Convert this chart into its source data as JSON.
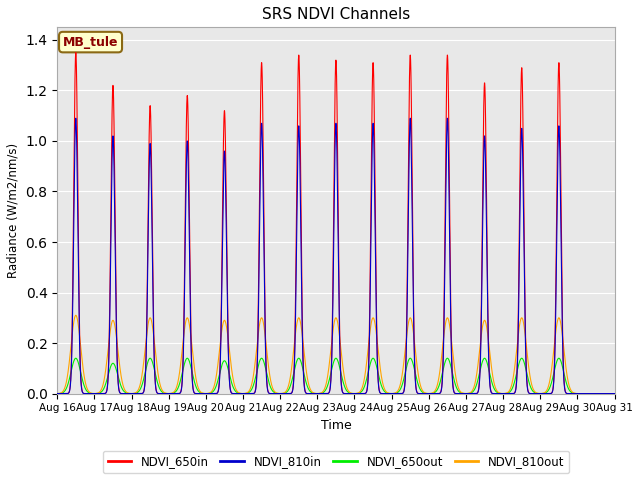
{
  "title": "SRS NDVI Channels",
  "xlabel": "Time",
  "ylabel": "Radiance (W/m2/nm/s)",
  "annotation_text": "MB_tule",
  "annotation_color": "#8B0000",
  "annotation_bg": "#FFFFCC",
  "annotation_border": "#8B6914",
  "xlim_start": 0,
  "xlim_end": 15,
  "ylim": [
    0,
    1.45
  ],
  "yticks": [
    0.0,
    0.2,
    0.4,
    0.6,
    0.8,
    1.0,
    1.2,
    1.4
  ],
  "xtick_labels": [
    "Aug 16",
    "Aug 17",
    "Aug 18",
    "Aug 19",
    "Aug 20",
    "Aug 21",
    "Aug 22",
    "Aug 23",
    "Aug 24",
    "Aug 25",
    "Aug 26",
    "Aug 27",
    "Aug 28",
    "Aug 29",
    "Aug 30",
    "Aug 31"
  ],
  "colors": {
    "NDVI_650in": "#FF0000",
    "NDVI_810in": "#0000CC",
    "NDVI_650out": "#00EE00",
    "NDVI_810out": "#FFA500"
  },
  "peak_650in": [
    1.35,
    1.22,
    1.14,
    1.18,
    1.12,
    1.31,
    1.34,
    1.32,
    1.31,
    1.34,
    1.34,
    1.23,
    1.29,
    1.31
  ],
  "peak_810in": [
    1.09,
    1.02,
    0.99,
    1.0,
    0.96,
    1.07,
    1.06,
    1.07,
    1.07,
    1.09,
    1.09,
    1.02,
    1.05,
    1.06
  ],
  "peak_650out": [
    0.14,
    0.12,
    0.14,
    0.14,
    0.13,
    0.14,
    0.14,
    0.14,
    0.14,
    0.14,
    0.14,
    0.14,
    0.14,
    0.14
  ],
  "peak_810out": [
    0.31,
    0.29,
    0.3,
    0.3,
    0.29,
    0.3,
    0.3,
    0.3,
    0.3,
    0.3,
    0.3,
    0.29,
    0.3,
    0.3
  ],
  "bg_color": "#FFFFFF",
  "plot_bg_color": "#E8E8E8",
  "grid_color": "#FFFFFF",
  "sigma_in": 0.055,
  "sigma_out": 0.13
}
